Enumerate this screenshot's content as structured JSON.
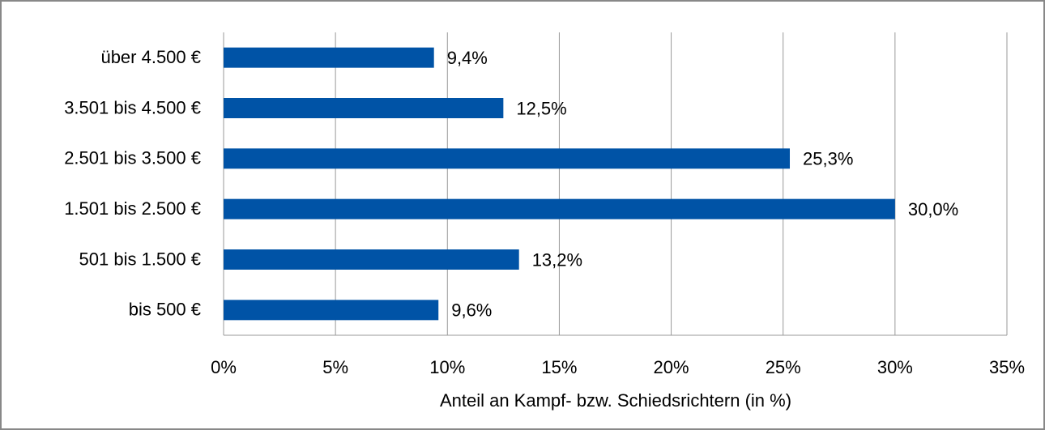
{
  "chart_data": {
    "type": "bar",
    "orientation": "horizontal",
    "categories": [
      "über 4.500 €",
      "3.501 bis 4.500 €",
      "2.501 bis 3.500 €",
      "1.501 bis 2.500 €",
      "501 bis 1.500 €",
      "bis 500 €"
    ],
    "values": [
      9.4,
      12.5,
      25.3,
      30.0,
      13.2,
      9.6
    ],
    "value_labels": [
      "9,4%",
      "12,5%",
      "25,3%",
      "30,0%",
      "13,2%",
      "9,6%"
    ],
    "color": "#0053a6",
    "xlabel": "Anteil an Kampf- bzw. Schiedsrichtern (in %)",
    "xlim": [
      0,
      35
    ],
    "xticks": [
      {
        "value": 0,
        "label": "0%"
      },
      {
        "value": 5,
        "label": "5%"
      },
      {
        "value": 10,
        "label": "10%"
      },
      {
        "value": 15,
        "label": "15%"
      },
      {
        "value": 20,
        "label": "20%"
      },
      {
        "value": 25,
        "label": "25%"
      },
      {
        "value": 30,
        "label": "30%"
      },
      {
        "value": 35,
        "label": "35%"
      }
    ],
    "grid": true
  }
}
